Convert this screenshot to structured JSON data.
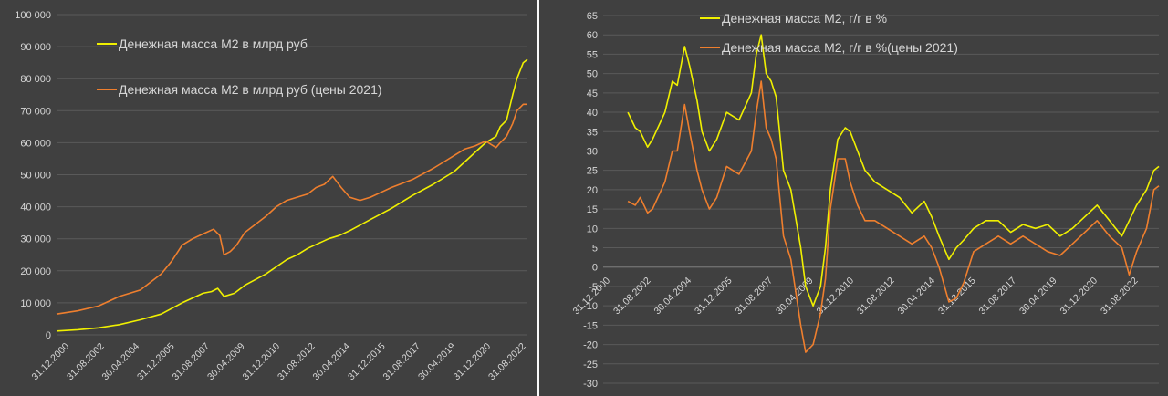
{
  "chart_data": [
    {
      "type": "line",
      "x_tick_labels": [
        "31.12.2000",
        "31.08.2002",
        "30.04.2004",
        "31.12.2005",
        "31.08.2007",
        "30.04.2009",
        "31.12.2010",
        "31.08.2012",
        "30.04.2014",
        "31.12.2015",
        "31.08.2017",
        "30.04.2019",
        "31.12.2020",
        "31.08.2022"
      ],
      "y_tick_labels": [
        "0",
        "10 000",
        "20 000",
        "30 000",
        "40 000",
        "50 000",
        "60 000",
        "70 000",
        "80 000",
        "90 000",
        "100 000"
      ],
      "ylim": [
        0,
        100000
      ],
      "xlim": [
        2001.0,
        2023.5
      ],
      "grid": true,
      "legend": "top-left",
      "series": [
        {
          "name": "Денежная масса М2 в млрд руб",
          "color": "#f0f000",
          "x": [
            2001.0,
            2002.0,
            2003.0,
            2004.0,
            2005.0,
            2006.0,
            2007.0,
            2007.5,
            2008.0,
            2008.4,
            2008.7,
            2009.0,
            2009.5,
            2010.0,
            2011.0,
            2012.0,
            2012.5,
            2013.0,
            2014.0,
            2014.5,
            2015.0,
            2016.0,
            2017.0,
            2018.0,
            2019.0,
            2020.0,
            2020.5,
            2021.0,
            2021.5,
            2022.0,
            2022.2,
            2022.5,
            2022.8,
            2023.0,
            2023.3,
            2023.5
          ],
          "y": [
            1200,
            1600,
            2200,
            3200,
            4700,
            6500,
            10000,
            11500,
            13000,
            13500,
            14500,
            12000,
            13000,
            15500,
            19000,
            23500,
            25000,
            27000,
            30000,
            31000,
            32500,
            36000,
            39500,
            43500,
            47000,
            51000,
            54000,
            57000,
            60000,
            62000,
            65000,
            67000,
            75000,
            80000,
            85000,
            86000
          ]
        },
        {
          "name": "Денежная масса М2 в млрд руб (цены 2021)",
          "color": "#ef7f2e",
          "x": [
            2001.0,
            2002.0,
            2003.0,
            2004.0,
            2005.0,
            2006.0,
            2006.5,
            2007.0,
            2007.5,
            2008.0,
            2008.5,
            2008.8,
            2009.0,
            2009.3,
            2009.6,
            2010.0,
            2011.0,
            2011.5,
            2012.0,
            2012.5,
            2013.0,
            2013.4,
            2013.8,
            2014.2,
            2014.6,
            2015.0,
            2015.5,
            2016.0,
            2016.5,
            2017.0,
            2018.0,
            2019.0,
            2019.5,
            2020.0,
            2020.5,
            2021.0,
            2021.5,
            2022.0,
            2022.2,
            2022.5,
            2022.8,
            2023.0,
            2023.3,
            2023.5
          ],
          "y": [
            6500,
            7500,
            9000,
            12000,
            14000,
            19000,
            23000,
            28000,
            30000,
            31500,
            33000,
            31000,
            25000,
            26000,
            28000,
            32000,
            37000,
            40000,
            42000,
            43000,
            44000,
            46000,
            47000,
            49500,
            46000,
            43000,
            42000,
            43000,
            44500,
            46000,
            48500,
            52000,
            54000,
            56000,
            58000,
            59000,
            60500,
            58500,
            60000,
            62000,
            66000,
            70000,
            72000,
            72000
          ]
        }
      ]
    },
    {
      "type": "line",
      "x_tick_labels": [
        "31.12.2000",
        "31.08.2002",
        "30.04.2004",
        "31.12.2005",
        "31.08.2007",
        "30.04.2009",
        "31.12.2010",
        "31.08.2012",
        "30.04.2014",
        "31.12.2015",
        "31.08.2017",
        "30.04.2019",
        "31.12.2020",
        "31.08.2022"
      ],
      "y_tick_labels": [
        "65",
        "60",
        "55",
        "50",
        "45",
        "40",
        "35",
        "30",
        "25",
        "20",
        "15",
        "10",
        "5",
        "0",
        "-5",
        "-10",
        "-15",
        "-20",
        "-25",
        "-30"
      ],
      "ylim": [
        -30,
        65
      ],
      "xlim": [
        2001.0,
        2023.5
      ],
      "grid": true,
      "legend": "top-center",
      "series": [
        {
          "name": "Денежная масса М2, г/г в %",
          "color": "#f0f000",
          "x": [
            2002.0,
            2002.3,
            2002.5,
            2002.8,
            2003.0,
            2003.5,
            2003.8,
            2004.0,
            2004.3,
            2004.5,
            2004.8,
            2005.0,
            2005.3,
            2005.6,
            2006.0,
            2006.5,
            2007.0,
            2007.2,
            2007.4,
            2007.6,
            2007.8,
            2008.0,
            2008.3,
            2008.6,
            2009.0,
            2009.2,
            2009.5,
            2009.8,
            2010.0,
            2010.2,
            2010.5,
            2010.8,
            2011.0,
            2011.3,
            2011.6,
            2012.0,
            2012.5,
            2013.0,
            2013.5,
            2014.0,
            2014.3,
            2014.6,
            2015.0,
            2015.3,
            2015.6,
            2016.0,
            2016.5,
            2017.0,
            2017.5,
            2018.0,
            2018.5,
            2019.0,
            2019.5,
            2020.0,
            2020.5,
            2021.0,
            2021.5,
            2022.0,
            2022.3,
            2022.6,
            2023.0,
            2023.3,
            2023.5
          ],
          "y": [
            40,
            36,
            35,
            31,
            33,
            40,
            48,
            47,
            57,
            52,
            43,
            35,
            30,
            33,
            40,
            38,
            45,
            55,
            60,
            50,
            48,
            44,
            25,
            20,
            5,
            -5,
            -10,
            -5,
            5,
            20,
            33,
            36,
            35,
            30,
            25,
            22,
            20,
            18,
            14,
            17,
            13,
            8,
            2,
            5,
            7,
            10,
            12,
            12,
            9,
            11,
            10,
            11,
            8,
            10,
            13,
            16,
            12,
            8,
            12,
            16,
            20,
            25,
            26
          ],
          "legend_order": 1
        },
        {
          "name": "Денежная масса М2, г/г в %(цены 2021)",
          "color": "#ef7f2e",
          "x": [
            2002.0,
            2002.3,
            2002.5,
            2002.8,
            2003.0,
            2003.5,
            2003.8,
            2004.0,
            2004.3,
            2004.5,
            2004.8,
            2005.0,
            2005.3,
            2005.6,
            2006.0,
            2006.5,
            2007.0,
            2007.2,
            2007.4,
            2007.6,
            2007.8,
            2008.0,
            2008.3,
            2008.6,
            2009.0,
            2009.2,
            2009.5,
            2009.8,
            2010.0,
            2010.2,
            2010.5,
            2010.8,
            2011.0,
            2011.3,
            2011.6,
            2012.0,
            2012.5,
            2013.0,
            2013.5,
            2014.0,
            2014.3,
            2014.6,
            2015.0,
            2015.3,
            2015.6,
            2016.0,
            2016.5,
            2017.0,
            2017.5,
            2018.0,
            2018.5,
            2019.0,
            2019.5,
            2020.0,
            2020.5,
            2021.0,
            2021.5,
            2022.0,
            2022.3,
            2022.6,
            2023.0,
            2023.3,
            2023.5
          ],
          "y": [
            17,
            16,
            18,
            14,
            15,
            22,
            30,
            30,
            42,
            35,
            25,
            20,
            15,
            18,
            26,
            24,
            30,
            40,
            48,
            36,
            33,
            28,
            8,
            2,
            -15,
            -22,
            -20,
            -12,
            -3,
            15,
            28,
            28,
            22,
            16,
            12,
            12,
            10,
            8,
            6,
            8,
            5,
            0,
            -9,
            -8,
            -4,
            4,
            6,
            8,
            6,
            8,
            6,
            4,
            3,
            6,
            9,
            12,
            8,
            5,
            -2,
            4,
            10,
            20,
            21
          ],
          "legend_order": 2
        }
      ]
    }
  ],
  "colors": {
    "background": "#404040",
    "grid": "#5a5a5a",
    "text": "#d6d6d6",
    "divider": "#fafafa"
  }
}
